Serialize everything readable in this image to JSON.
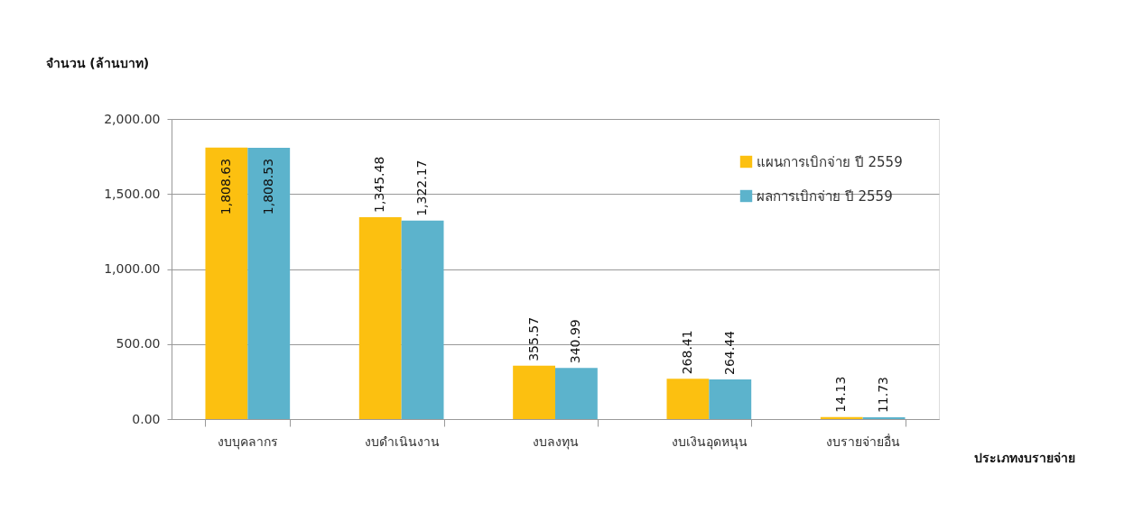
{
  "chart_data": {
    "type": "bar",
    "xlabel": "ประเภทงบรายจ่าย",
    "ylabel": "จำนวน (ล้านบาท)",
    "categories": [
      "งบบุคลากร",
      "งบดำเนินงาน",
      "งบลงทุน",
      "งบเงินอุดหนุน",
      "งบรายจ่ายอื่น"
    ],
    "series": [
      {
        "name": "แผนการเบิกจ่าย ปี 2559",
        "color": "#fcc010",
        "values": [
          1808.63,
          1345.48,
          355.57,
          268.41,
          14.13
        ],
        "value_labels": [
          "1,808.63",
          "1,345.48",
          "355.57",
          "268.41",
          "14.13"
        ]
      },
      {
        "name": "ผลการเบิกจ่าย ปี 2559",
        "color": "#5cb3cc",
        "values": [
          1808.53,
          1322.17,
          340.99,
          264.44,
          11.73
        ],
        "value_labels": [
          "1,808.53",
          "1,322.17",
          "340.99",
          "264.44",
          "11.73"
        ]
      }
    ],
    "ylim": [
      0,
      2000
    ],
    "yticks": [
      {
        "value": 0,
        "label": "0.00"
      },
      {
        "value": 500,
        "label": "500.00"
      },
      {
        "value": 1000,
        "label": "1,000.00"
      },
      {
        "value": 1500,
        "label": "1,500.00"
      },
      {
        "value": 2000,
        "label": "2,000.00"
      }
    ],
    "grid": "y",
    "legend": "top right"
  }
}
